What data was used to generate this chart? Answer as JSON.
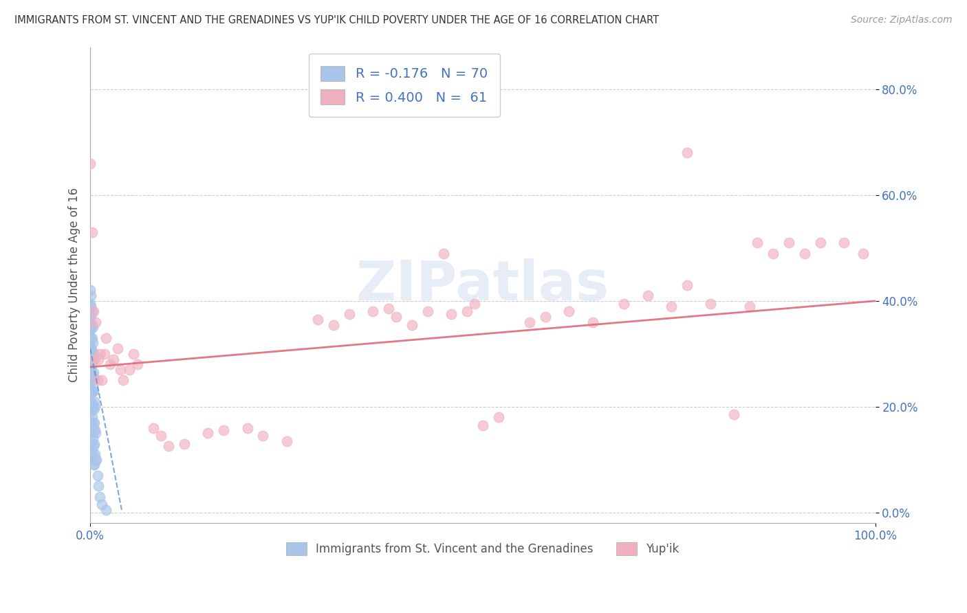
{
  "title": "IMMIGRANTS FROM ST. VINCENT AND THE GRENADINES VS YUP'IK CHILD POVERTY UNDER THE AGE OF 16 CORRELATION CHART",
  "source": "Source: ZipAtlas.com",
  "ylabel": "Child Poverty Under the Age of 16",
  "xlim": [
    0,
    1.0
  ],
  "ylim": [
    -0.02,
    0.88
  ],
  "yticks": [
    0.0,
    0.2,
    0.4,
    0.6,
    0.8
  ],
  "ytick_labels": [
    "0.0%",
    "20.0%",
    "40.0%",
    "60.0%",
    "80.0%"
  ],
  "blue_R": -0.176,
  "blue_N": 70,
  "pink_R": 0.4,
  "pink_N": 61,
  "blue_color": "#a8c4e8",
  "pink_color": "#f0b0c0",
  "blue_line_color": "#6090d0",
  "pink_line_color": "#e06878",
  "legend_label_blue": "Immigrants from St. Vincent and the Grenadines",
  "legend_label_pink": "Yup'ik",
  "watermark": "ZIPatlas",
  "blue_dots": [
    [
      0.0,
      0.42
    ],
    [
      0.0,
      0.395
    ],
    [
      0.0,
      0.375
    ],
    [
      0.0,
      0.36
    ],
    [
      0.0,
      0.345
    ],
    [
      0.0,
      0.33
    ],
    [
      0.0,
      0.315
    ],
    [
      0.0,
      0.3
    ],
    [
      0.0,
      0.285
    ],
    [
      0.0,
      0.27
    ],
    [
      0.0,
      0.255
    ],
    [
      0.0,
      0.24
    ],
    [
      0.001,
      0.41
    ],
    [
      0.001,
      0.39
    ],
    [
      0.001,
      0.37
    ],
    [
      0.001,
      0.35
    ],
    [
      0.001,
      0.33
    ],
    [
      0.001,
      0.31
    ],
    [
      0.001,
      0.29
    ],
    [
      0.001,
      0.27
    ],
    [
      0.001,
      0.25
    ],
    [
      0.001,
      0.23
    ],
    [
      0.001,
      0.21
    ],
    [
      0.001,
      0.19
    ],
    [
      0.001,
      0.17
    ],
    [
      0.001,
      0.15
    ],
    [
      0.001,
      0.13
    ],
    [
      0.001,
      0.11
    ],
    [
      0.002,
      0.38
    ],
    [
      0.002,
      0.355
    ],
    [
      0.002,
      0.33
    ],
    [
      0.002,
      0.305
    ],
    [
      0.002,
      0.28
    ],
    [
      0.002,
      0.255
    ],
    [
      0.002,
      0.23
    ],
    [
      0.002,
      0.205
    ],
    [
      0.002,
      0.18
    ],
    [
      0.002,
      0.155
    ],
    [
      0.003,
      0.35
    ],
    [
      0.003,
      0.32
    ],
    [
      0.003,
      0.29
    ],
    [
      0.003,
      0.26
    ],
    [
      0.003,
      0.23
    ],
    [
      0.003,
      0.2
    ],
    [
      0.003,
      0.17
    ],
    [
      0.003,
      0.14
    ],
    [
      0.003,
      0.11
    ],
    [
      0.004,
      0.3
    ],
    [
      0.004,
      0.265
    ],
    [
      0.004,
      0.23
    ],
    [
      0.004,
      0.195
    ],
    [
      0.004,
      0.16
    ],
    [
      0.004,
      0.125
    ],
    [
      0.004,
      0.09
    ],
    [
      0.005,
      0.25
    ],
    [
      0.005,
      0.21
    ],
    [
      0.005,
      0.17
    ],
    [
      0.005,
      0.13
    ],
    [
      0.005,
      0.09
    ],
    [
      0.006,
      0.2
    ],
    [
      0.006,
      0.155
    ],
    [
      0.006,
      0.11
    ],
    [
      0.007,
      0.15
    ],
    [
      0.007,
      0.1
    ],
    [
      0.008,
      0.1
    ],
    [
      0.009,
      0.07
    ],
    [
      0.01,
      0.05
    ],
    [
      0.012,
      0.03
    ],
    [
      0.015,
      0.015
    ],
    [
      0.02,
      0.005
    ]
  ],
  "pink_dots": [
    [
      0.0,
      0.66
    ],
    [
      0.002,
      0.53
    ],
    [
      0.004,
      0.38
    ],
    [
      0.005,
      0.29
    ],
    [
      0.007,
      0.36
    ],
    [
      0.009,
      0.25
    ],
    [
      0.01,
      0.29
    ],
    [
      0.012,
      0.3
    ],
    [
      0.015,
      0.25
    ],
    [
      0.018,
      0.3
    ],
    [
      0.02,
      0.33
    ],
    [
      0.025,
      0.28
    ],
    [
      0.03,
      0.29
    ],
    [
      0.035,
      0.31
    ],
    [
      0.038,
      0.27
    ],
    [
      0.042,
      0.25
    ],
    [
      0.05,
      0.27
    ],
    [
      0.055,
      0.3
    ],
    [
      0.06,
      0.28
    ],
    [
      0.08,
      0.16
    ],
    [
      0.09,
      0.145
    ],
    [
      0.1,
      0.125
    ],
    [
      0.12,
      0.13
    ],
    [
      0.15,
      0.15
    ],
    [
      0.17,
      0.155
    ],
    [
      0.2,
      0.16
    ],
    [
      0.22,
      0.145
    ],
    [
      0.25,
      0.135
    ],
    [
      0.29,
      0.365
    ],
    [
      0.31,
      0.355
    ],
    [
      0.33,
      0.375
    ],
    [
      0.36,
      0.38
    ],
    [
      0.38,
      0.385
    ],
    [
      0.39,
      0.37
    ],
    [
      0.41,
      0.355
    ],
    [
      0.43,
      0.38
    ],
    [
      0.45,
      0.49
    ],
    [
      0.46,
      0.375
    ],
    [
      0.48,
      0.38
    ],
    [
      0.49,
      0.395
    ],
    [
      0.5,
      0.165
    ],
    [
      0.52,
      0.18
    ],
    [
      0.56,
      0.36
    ],
    [
      0.58,
      0.37
    ],
    [
      0.61,
      0.38
    ],
    [
      0.64,
      0.36
    ],
    [
      0.68,
      0.395
    ],
    [
      0.71,
      0.41
    ],
    [
      0.74,
      0.39
    ],
    [
      0.76,
      0.43
    ],
    [
      0.79,
      0.395
    ],
    [
      0.82,
      0.185
    ],
    [
      0.84,
      0.39
    ],
    [
      0.76,
      0.68
    ],
    [
      0.85,
      0.51
    ],
    [
      0.87,
      0.49
    ],
    [
      0.89,
      0.51
    ],
    [
      0.91,
      0.49
    ],
    [
      0.93,
      0.51
    ],
    [
      0.96,
      0.51
    ],
    [
      0.985,
      0.49
    ]
  ],
  "pink_line_x0": 0.0,
  "pink_line_y0": 0.275,
  "pink_line_x1": 1.0,
  "pink_line_y1": 0.4,
  "blue_line_x0": 0.0,
  "blue_line_y0": 0.31,
  "blue_line_x1": 0.04,
  "blue_line_y1": 0.005
}
